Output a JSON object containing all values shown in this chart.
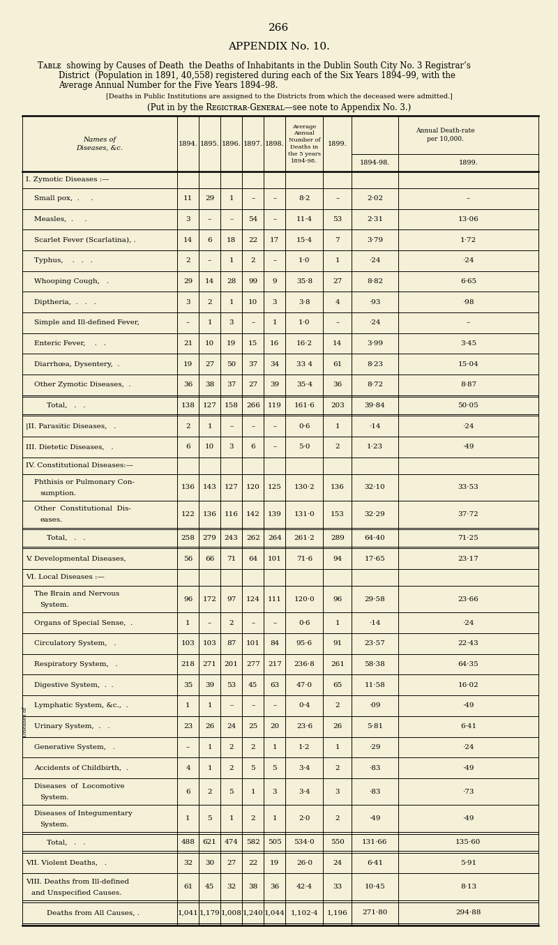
{
  "page_number": "266",
  "title_main": "APPENDIX No. 10.",
  "bg_color": "#f5f0d8",
  "rows": [
    {
      "label": "I. Zуmotic Diseases :—",
      "indent": 0,
      "is_section": true,
      "values": [
        "",
        "",
        "",
        "",
        "",
        "",
        "",
        "",
        ""
      ]
    },
    {
      "label": "Small pox,  .     .",
      "indent": 1,
      "values": [
        "11",
        "29",
        "1",
        "–",
        "–",
        "8·2",
        "–",
        "2·02",
        "–"
      ]
    },
    {
      "label": "Measles,  .     .",
      "indent": 1,
      "values": [
        "3",
        "–",
        "–",
        "54",
        "–",
        "11·4",
        "53",
        "2·31",
        "13·06"
      ]
    },
    {
      "label": "Scarlet Fever (Scarlatina), .",
      "indent": 1,
      "values": [
        "14",
        "6",
        "18",
        "22",
        "17",
        "15·4",
        "7",
        "3·79",
        "1·72"
      ]
    },
    {
      "label": "Typhus,    .   .   .",
      "indent": 1,
      "values": [
        "2",
        "–",
        "1",
        "2",
        "–",
        "1·0",
        "1",
        "·24",
        "·24"
      ]
    },
    {
      "label": "Whooping Cough,   .",
      "indent": 1,
      "values": [
        "29",
        "14",
        "28",
        "99",
        "9",
        "35·8",
        "27",
        "8·82",
        "6·65"
      ]
    },
    {
      "label": "Diptheria,  .   .   .",
      "indent": 1,
      "values": [
        "3",
        "2",
        "1",
        "10",
        "3",
        "3·8",
        "4",
        "·93",
        "·98"
      ]
    },
    {
      "label": "Simple and Ill-defined Fever,",
      "indent": 1,
      "values": [
        "–",
        "1",
        "3",
        "–",
        "1",
        "1·0",
        "–",
        "·24",
        "–"
      ]
    },
    {
      "label": "Enteric Fever,    .   .",
      "indent": 1,
      "values": [
        "21",
        "10",
        "19",
        "15",
        "16",
        "16·2",
        "14",
        "3·99",
        "3·45"
      ]
    },
    {
      "label": "Diarrhœa, Dysentery,  .",
      "indent": 1,
      "values": [
        "19",
        "27",
        "50",
        "37",
        "34",
        "33 4",
        "61",
        "8·23",
        "15·04"
      ]
    },
    {
      "label": "Other Zymotic Diseases,  .",
      "indent": 1,
      "values": [
        "36",
        "38",
        "37",
        "27",
        "39",
        "35·4",
        "36",
        "8·72",
        "8·87"
      ]
    },
    {
      "label": "Total,   .   .",
      "indent": 2,
      "is_total": true,
      "values": [
        "138",
        "127",
        "158",
        "266",
        "119",
        "161·6",
        "203",
        "39·84",
        "50·05"
      ]
    },
    {
      "label": "|II. Parasitic Diseases,   .",
      "indent": 0,
      "values": [
        "2",
        "1",
        "–",
        "–",
        "–",
        "0·6",
        "1",
        "·14",
        "·24"
      ]
    },
    {
      "label": "III. Dietetic Diseases,   .",
      "indent": 0,
      "values": [
        "6",
        "10",
        "3",
        "6",
        "–",
        "5·0",
        "2",
        "1·23",
        "·49"
      ]
    },
    {
      "label": "IV. Constitutional Diseases:—",
      "indent": 0,
      "is_section": true,
      "values": [
        "",
        "",
        "",
        "",
        "",
        "",
        "",
        "",
        ""
      ]
    },
    {
      "label": "Phthisis or Pulmonary Con-|sumption.",
      "indent": 1,
      "is_wrap": true,
      "values": [
        "136",
        "143",
        "127",
        "120",
        "125",
        "130·2",
        "136",
        "32·10",
        "33·53"
      ]
    },
    {
      "label": "Other  Constitutional  Dis-|eases.",
      "indent": 1,
      "is_wrap": true,
      "values": [
        "122",
        "136",
        "116",
        "142",
        "139",
        "131·0",
        "153",
        "32·29",
        "37·72"
      ]
    },
    {
      "label": "Total,   .   .",
      "indent": 2,
      "is_total": true,
      "values": [
        "258",
        "279",
        "243",
        "262",
        "264",
        "261·2",
        "289",
        "64·40",
        "71·25"
      ]
    },
    {
      "label": "V. Developmental Diseases,",
      "indent": 0,
      "values": [
        "56",
        "66",
        "71",
        "64",
        "101",
        "71·6",
        "94",
        "17·65",
        "23·17"
      ]
    },
    {
      "label": "VI. Local Diseases :—",
      "indent": 0,
      "is_section": true,
      "values": [
        "",
        "",
        "",
        "",
        "",
        "",
        "",
        "",
        ""
      ]
    },
    {
      "label": "The Brain and Nervous|System.",
      "indent": 1,
      "is_wrap": true,
      "values": [
        "96",
        "172",
        "97",
        "124",
        "111",
        "120·0",
        "96",
        "29·58",
        "23·66"
      ]
    },
    {
      "label": "Organs of Special Sense,  .",
      "indent": 1,
      "values": [
        "1",
        "–",
        "2",
        "–",
        "–",
        "0·6",
        "1",
        "·14",
        "·24"
      ]
    },
    {
      "label": "Circulatory System,   .",
      "indent": 1,
      "values": [
        "103",
        "103",
        "87",
        "101",
        "84",
        "95·6",
        "91",
        "23·57",
        "22·43"
      ]
    },
    {
      "label": "Respiratory System,   .",
      "indent": 1,
      "values": [
        "218",
        "271",
        "201",
        "277",
        "217",
        "236·8",
        "261",
        "58·38",
        "64·35"
      ]
    },
    {
      "label": "Digestive System,  .  .",
      "indent": 1,
      "values": [
        "35",
        "39",
        "53",
        "45",
        "63",
        "47·0",
        "65",
        "11·58",
        "16·02"
      ]
    },
    {
      "label": "Lymphatic System, &c.,  .",
      "indent": 1,
      "values": [
        "1",
        "1",
        "–",
        "–",
        "–",
        "0·4",
        "2",
        "·09",
        "·49"
      ]
    },
    {
      "label": "Urinary System,  .   .",
      "indent": 1,
      "values": [
        "23",
        "26",
        "24",
        "25",
        "20",
        "23·6",
        "26",
        "5·81",
        "6·41"
      ]
    },
    {
      "label": "Generative System,   .",
      "indent": 1,
      "values": [
        "–",
        "1",
        "2",
        "2",
        "1",
        "1·2",
        "1",
        "·29",
        "·24"
      ]
    },
    {
      "label": "Accidents of Childbirth,  .",
      "indent": 1,
      "values": [
        "4",
        "1",
        "2",
        "5",
        "5",
        "3·4",
        "2",
        "·83",
        "·49"
      ]
    },
    {
      "label": "Diseases  of  Locomotive|System.",
      "indent": 1,
      "is_wrap": true,
      "values": [
        "6",
        "2",
        "5",
        "1",
        "3",
        "3·4",
        "3",
        "·83",
        "·73"
      ]
    },
    {
      "label": "Diseases of Integumentary|System.",
      "indent": 1,
      "is_wrap": true,
      "values": [
        "1",
        "5",
        "1",
        "2",
        "1",
        "2·0",
        "2",
        "·49",
        "·49"
      ]
    },
    {
      "label": "Total,   .   .",
      "indent": 2,
      "is_total": true,
      "values": [
        "488",
        "621",
        "474",
        "582",
        "505",
        "534·0",
        "550",
        "131·66",
        "135·60"
      ]
    },
    {
      "label": "VII. Violent Deaths,   .",
      "indent": 0,
      "values": [
        "32",
        "30",
        "27",
        "22",
        "19",
        "26·0",
        "24",
        "6·41",
        "5·91"
      ]
    },
    {
      "label": "VIII. Deaths from Ill-defined|and Unspecified Causes.",
      "indent": 0,
      "is_wrap": true,
      "values": [
        "61",
        "45",
        "32",
        "38",
        "36",
        "42·4",
        "33",
        "10·45",
        "8·13"
      ]
    },
    {
      "label": "Deaths from All Causes, .",
      "indent": 0,
      "is_grand_total": true,
      "values": [
        "1,041",
        "1,179",
        "1,008",
        "1,240",
        "1,044",
        "1,102·4",
        "1,196",
        "271·80",
        "294·88"
      ]
    }
  ]
}
